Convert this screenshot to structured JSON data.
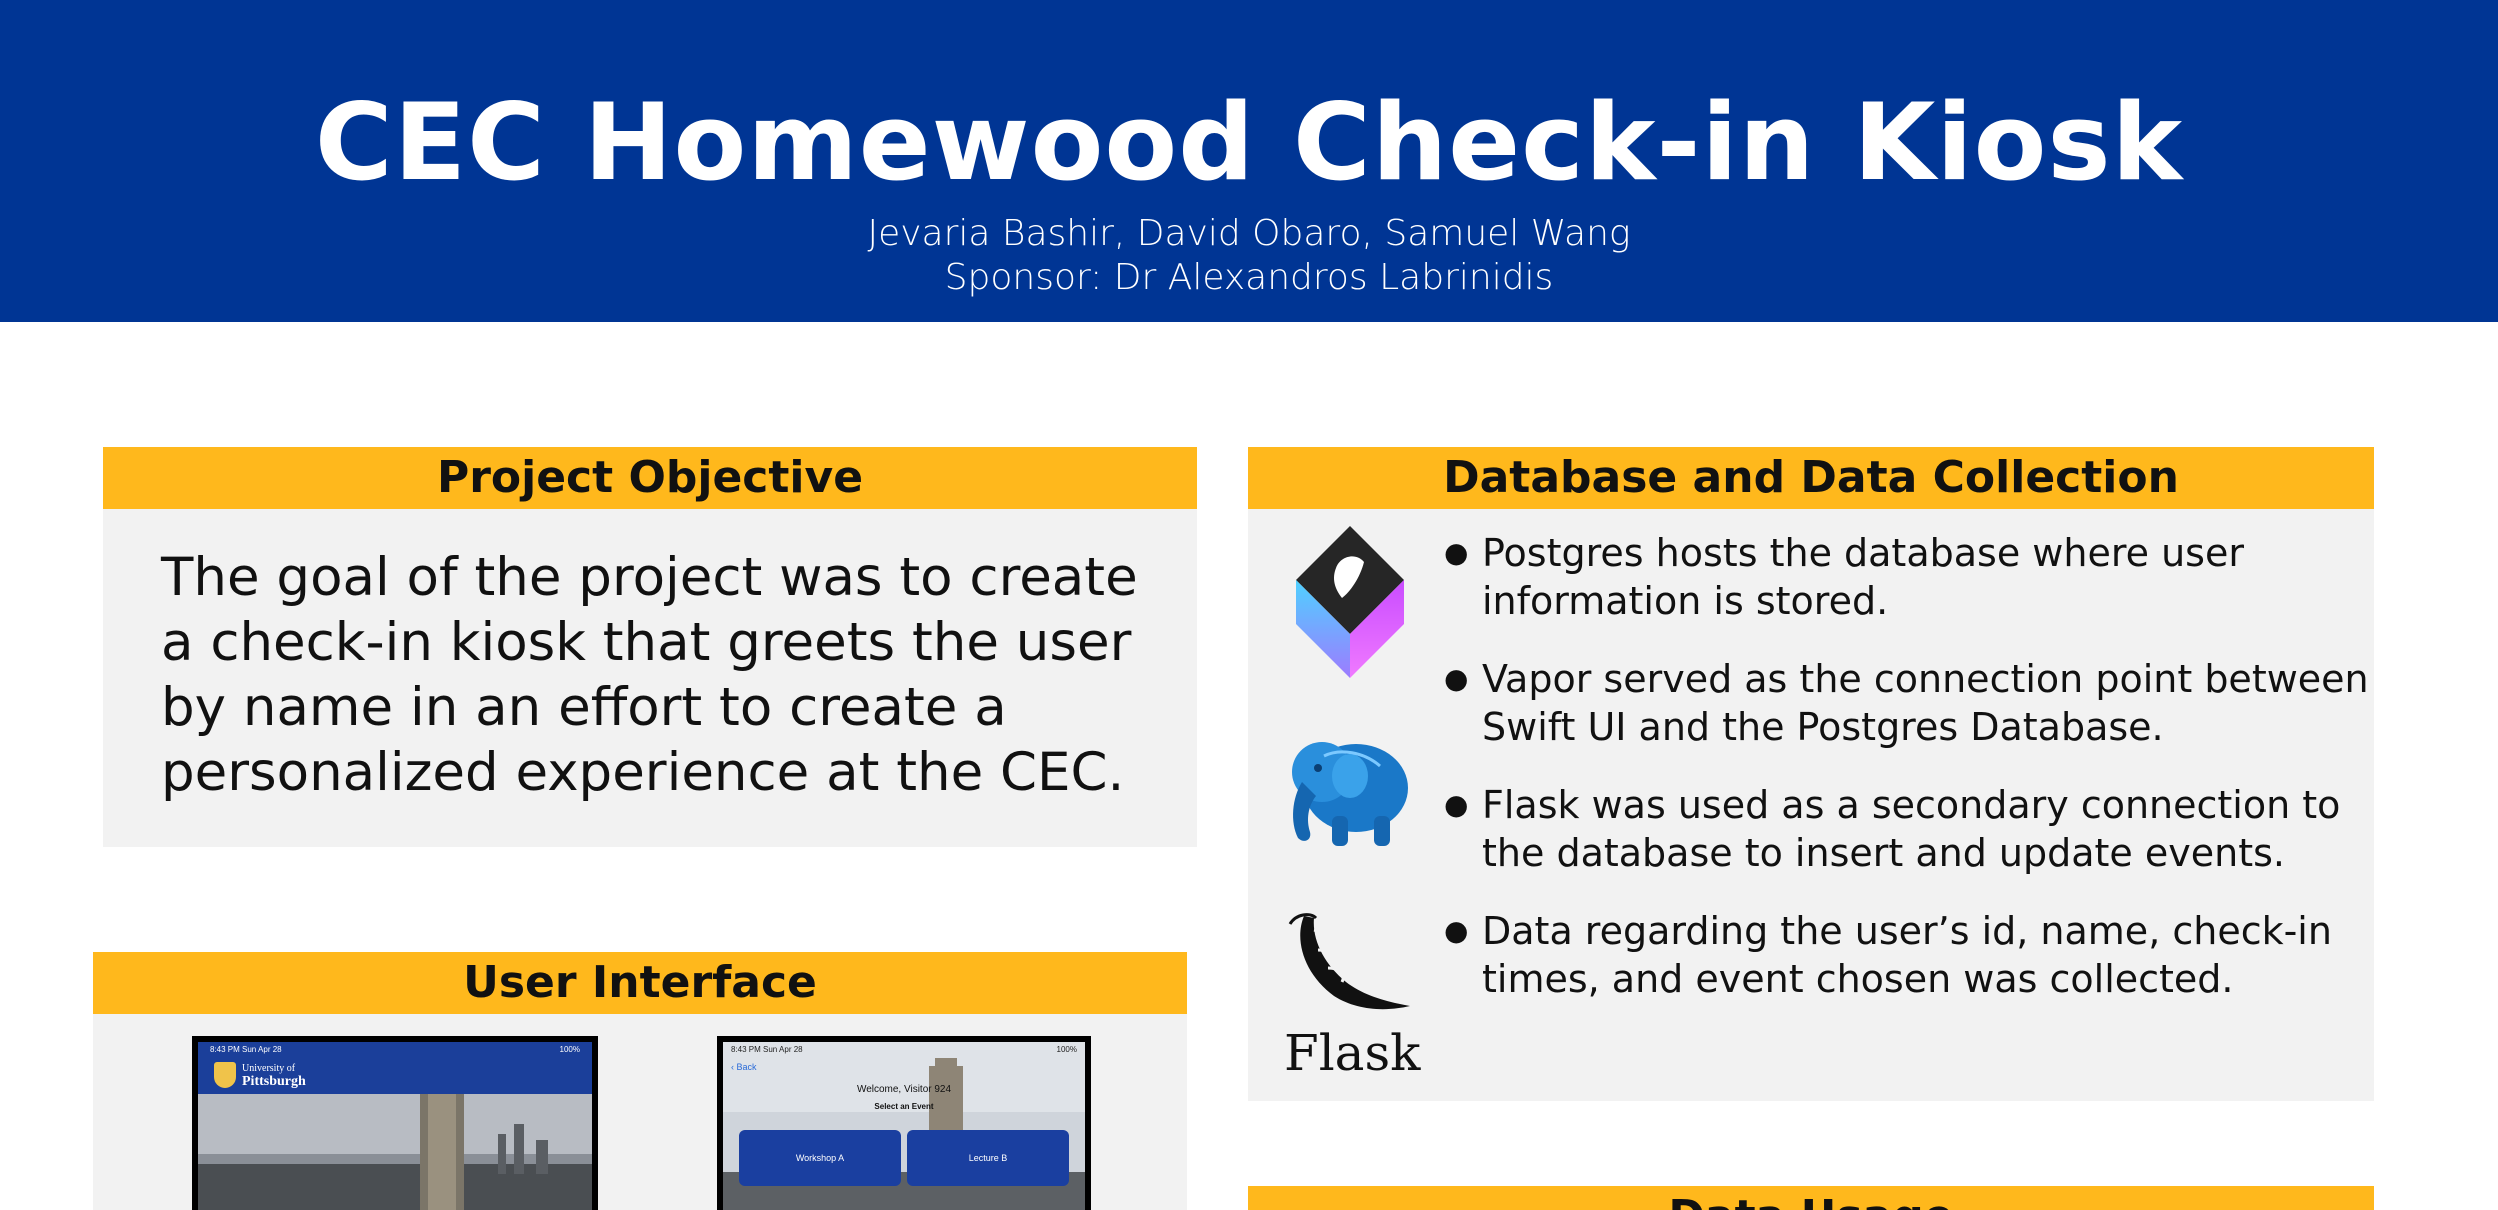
{
  "header": {
    "title": "CEC Homewood Check-in Kiosk",
    "authors": "Jevaria Bashir, David Obaro, Samuel Wang",
    "sponsor": "Sponsor: Dr Alexandros Labrinidis"
  },
  "objective": {
    "heading": "Project Objective",
    "text": "The goal of the project was to create a check-in kiosk that greets the user by name in an effort to create a personalized experience at the CEC."
  },
  "database": {
    "heading": "Database and Data Collection",
    "bullets": [
      "Postgres hosts the database where user information is stored.",
      "Vapor served as the connection point between Swift UI and the Postgres Database.",
      "Flask was used as a secondary connection to the database to insert and update events.",
      "Data regarding the user’s id, name, check-in times, and event chosen was collected."
    ],
    "flask_word": "Flask"
  },
  "ui": {
    "heading": "User Interface",
    "shot1": {
      "time": "8:43 PM   Sun Apr 28",
      "battery": "100%",
      "logo_line1": "University of",
      "logo_line2": "Pittsburgh"
    },
    "shot2": {
      "time": "8:43 PM   Sun Apr 28",
      "battery": "100%",
      "back": "‹ Back",
      "welcome": "Welcome, Visitor 924",
      "select": "Select an Event",
      "btn_a": "Workshop A",
      "btn_b": "Lecture B"
    }
  },
  "usage": {
    "heading": "Data Usage"
  },
  "colors": {
    "pitt_blue": "#003594",
    "pitt_gold": "#ffb81c",
    "panel_gray": "#f2f2f2"
  }
}
